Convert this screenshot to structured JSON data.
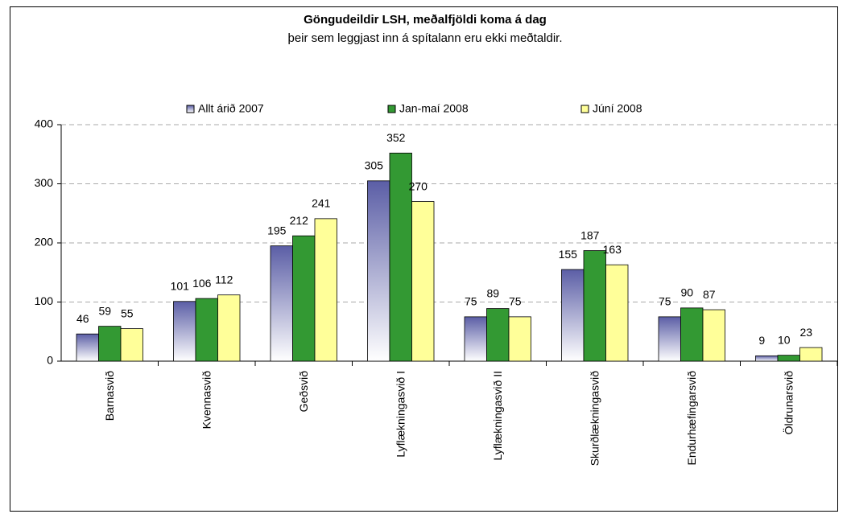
{
  "chart_data": {
    "type": "bar",
    "title": "Göngudeildir LSH, meðalfjöldi koma á dag",
    "subtitle": "þeir sem leggjast inn á spítalann eru ekki meðtaldir.",
    "categories": [
      "Barnasvið",
      "Kvennasvið",
      "Geðsvið",
      "Lyflækningasvið I",
      "Lyflækningasvið II",
      "Skurðlækningasvið",
      "Endurhæfingarsvið",
      "Öldrunarsvið"
    ],
    "series": [
      {
        "name": "Allt árið 2007",
        "color": "#5b5ea6",
        "gradient": true,
        "values": [
          46,
          101,
          195,
          305,
          75,
          155,
          75,
          9
        ]
      },
      {
        "name": "Jan-maí 2008",
        "color": "#339933",
        "values": [
          59,
          106,
          212,
          352,
          89,
          187,
          90,
          10
        ]
      },
      {
        "name": "Júní 2008",
        "color": "#ffff99",
        "values": [
          55,
          112,
          241,
          270,
          75,
          163,
          87,
          23
        ]
      }
    ],
    "ylim": [
      0,
      400
    ],
    "yticks": [
      0,
      100,
      200,
      300,
      400
    ],
    "grid": true,
    "legend": "top"
  }
}
